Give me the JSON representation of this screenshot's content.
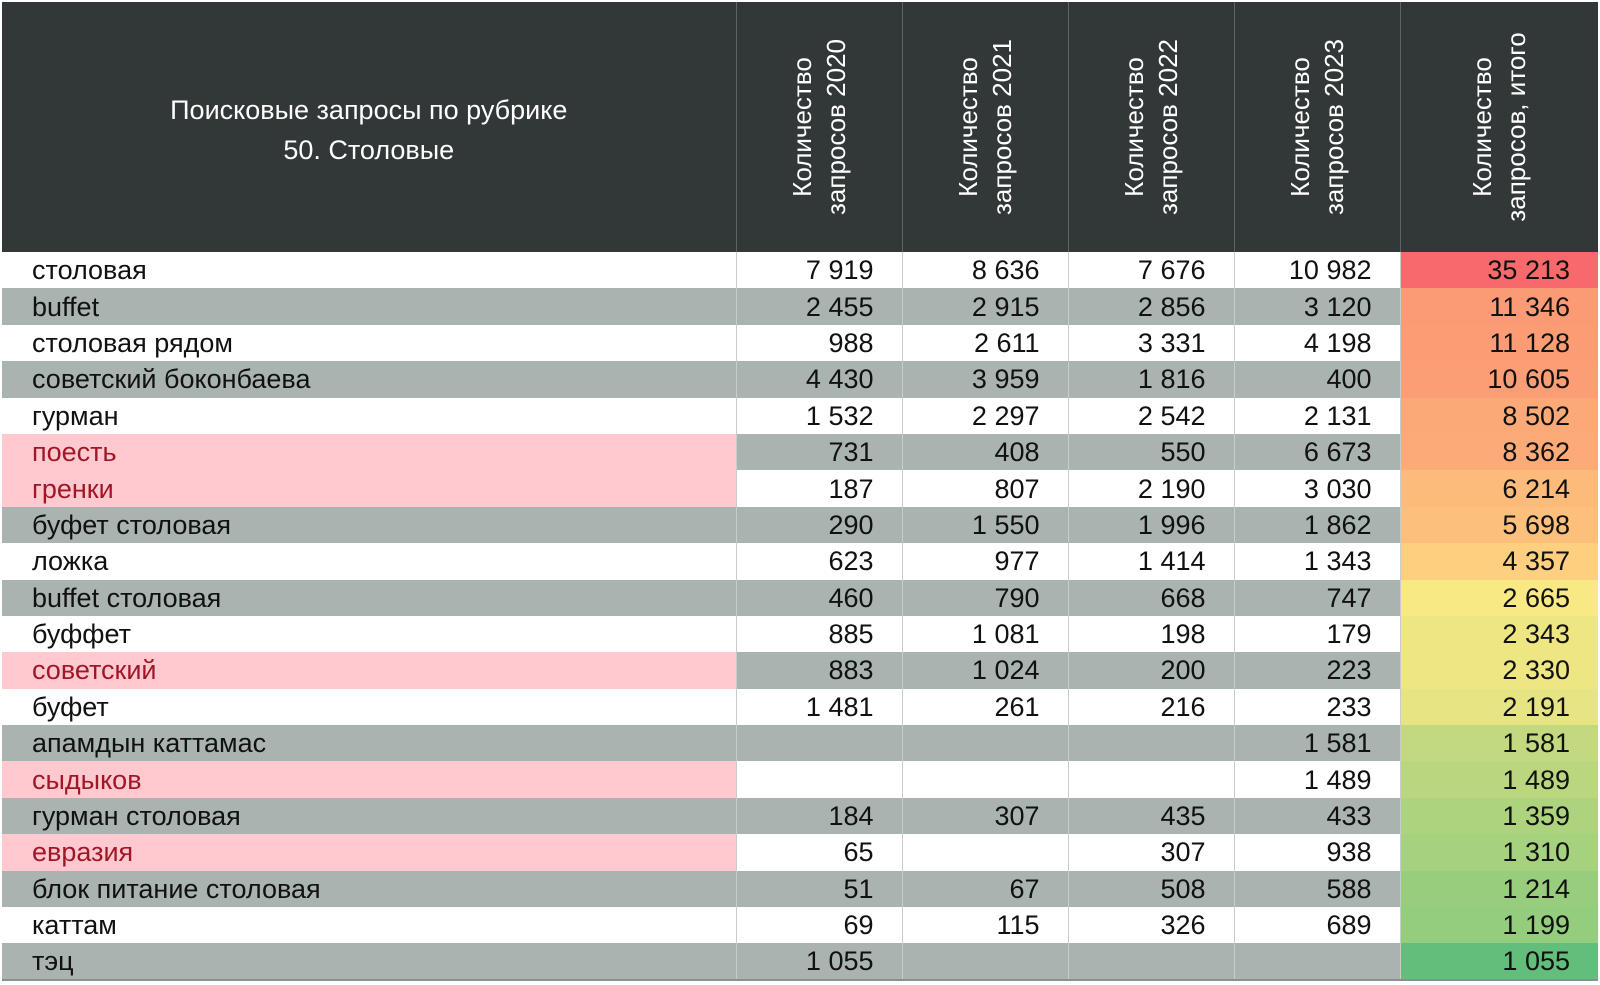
{
  "chart_data": {
    "type": "table",
    "title_lines": [
      "Поисковые запросы по рубрике",
      "50. Столовые"
    ],
    "columns": [
      [
        "Количество",
        "запросов 2020"
      ],
      [
        "Количество",
        "запросов 2021"
      ],
      [
        "Количество",
        "запросов 2022"
      ],
      [
        "Количество",
        "запросов 2023"
      ],
      [
        "Количество",
        "запросов, итого"
      ]
    ],
    "rows": [
      {
        "query": "столовая",
        "values": [
          "7 919",
          "8 636",
          "7 676",
          "10 982"
        ],
        "total": "35 213",
        "highlight": false
      },
      {
        "query": "buffet",
        "values": [
          "2 455",
          "2 915",
          "2 856",
          "3 120"
        ],
        "total": "11 346",
        "highlight": false
      },
      {
        "query": "столовая рядом",
        "values": [
          "988",
          "2 611",
          "3 331",
          "4 198"
        ],
        "total": "11 128",
        "highlight": false
      },
      {
        "query": "советский боконбаева",
        "values": [
          "4 430",
          "3 959",
          "1 816",
          "400"
        ],
        "total": "10 605",
        "highlight": false
      },
      {
        "query": "гурман",
        "values": [
          "1 532",
          "2 297",
          "2 542",
          "2 131"
        ],
        "total": "8 502",
        "highlight": false
      },
      {
        "query": "поесть",
        "values": [
          "731",
          "408",
          "550",
          "6 673"
        ],
        "total": "8 362",
        "highlight": true
      },
      {
        "query": "гренки",
        "values": [
          "187",
          "807",
          "2 190",
          "3 030"
        ],
        "total": "6 214",
        "highlight": true
      },
      {
        "query": "буфет столовая",
        "values": [
          "290",
          "1 550",
          "1 996",
          "1 862"
        ],
        "total": "5 698",
        "highlight": false
      },
      {
        "query": "ложка",
        "values": [
          "623",
          "977",
          "1 414",
          "1 343"
        ],
        "total": "4 357",
        "highlight": false
      },
      {
        "query": "buffet столовая",
        "values": [
          "460",
          "790",
          "668",
          "747"
        ],
        "total": "2 665",
        "highlight": false
      },
      {
        "query": "буффет",
        "values": [
          "885",
          "1 081",
          "198",
          "179"
        ],
        "total": "2 343",
        "highlight": false
      },
      {
        "query": "советский",
        "values": [
          "883",
          "1 024",
          "200",
          "223"
        ],
        "total": "2 330",
        "highlight": true
      },
      {
        "query": "буфет",
        "values": [
          "1 481",
          "261",
          "216",
          "233"
        ],
        "total": "2 191",
        "highlight": false
      },
      {
        "query": "апамдын каттамас",
        "values": [
          "",
          "",
          "",
          "1 581"
        ],
        "total": "1 581",
        "highlight": false
      },
      {
        "query": "сыдыков",
        "values": [
          "",
          "",
          "",
          "1 489"
        ],
        "total": "1 489",
        "highlight": true
      },
      {
        "query": "гурман столовая",
        "values": [
          "184",
          "307",
          "435",
          "433"
        ],
        "total": "1 359",
        "highlight": false
      },
      {
        "query": "евразия",
        "values": [
          "65",
          "",
          "307",
          "938"
        ],
        "total": "1 310",
        "highlight": true
      },
      {
        "query": "блок питание столовая",
        "values": [
          "51",
          "67",
          "508",
          "588"
        ],
        "total": "1 214",
        "highlight": false
      },
      {
        "query": "каттам",
        "values": [
          "69",
          "115",
          "326",
          "689"
        ],
        "total": "1 199",
        "highlight": false
      },
      {
        "query": "тэц",
        "values": [
          "1 055",
          "",
          "",
          ""
        ],
        "total": "1 055",
        "highlight": false
      }
    ],
    "colors": {
      "header_bg": "#323837",
      "row_alt_bg": "#a9b3b0",
      "highlight_bg": "#ffc9cf",
      "highlight_text": "#a01828",
      "total_scale": [
        "#63be7b",
        "#ffeb84",
        "#f8696b"
      ]
    }
  }
}
